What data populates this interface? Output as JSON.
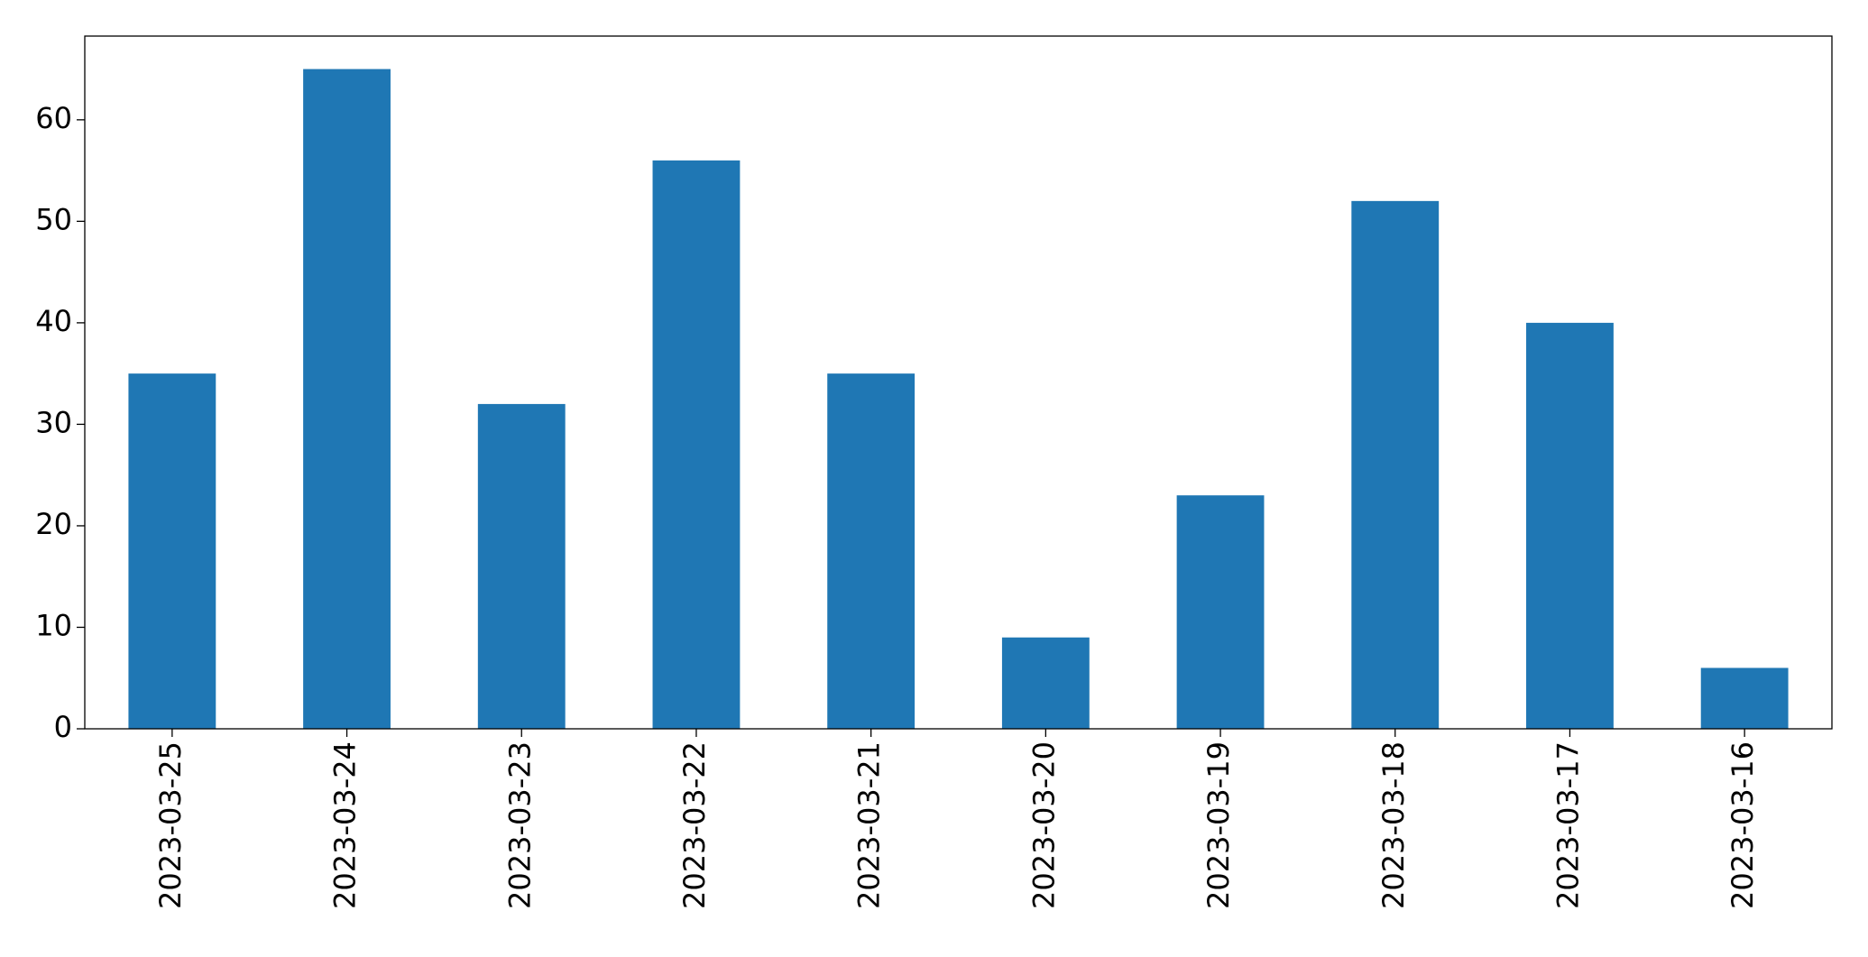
{
  "chart_data": {
    "type": "bar",
    "categories": [
      "2023-03-25",
      "2023-03-24",
      "2023-03-23",
      "2023-03-22",
      "2023-03-21",
      "2023-03-20",
      "2023-03-19",
      "2023-03-18",
      "2023-03-17",
      "2023-03-16"
    ],
    "values": [
      35,
      65,
      32,
      56,
      35,
      9,
      23,
      52,
      40,
      6
    ],
    "color": "#1f77b4",
    "ylim": [
      0,
      68.25
    ],
    "yticks": [
      0,
      10,
      20,
      30,
      40,
      50,
      60
    ],
    "grid": false
  }
}
